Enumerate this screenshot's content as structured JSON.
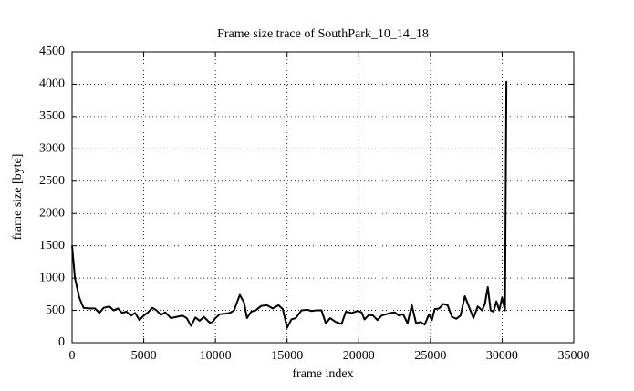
{
  "chart_data": {
    "type": "line",
    "title": "Frame size trace of SouthPark_10_14_18",
    "x_label": "frame index",
    "y_label": "frame size [byte]",
    "xlim": [
      0,
      35000
    ],
    "ylim": [
      0,
      4500
    ],
    "xticks": [
      0,
      5000,
      10000,
      15000,
      20000,
      25000,
      30000,
      35000
    ],
    "yticks": [
      0,
      500,
      1000,
      1500,
      2000,
      2500,
      3000,
      3500,
      4000,
      4500
    ],
    "grid": true,
    "series": [
      {
        "name": "frame size",
        "color": "#000000",
        "x": [
          0,
          200,
          500,
          800,
          1200,
          1600,
          1900,
          2200,
          2600,
          2900,
          3200,
          3500,
          3800,
          4100,
          4400,
          4700,
          5000,
          5300,
          5600,
          5900,
          6200,
          6500,
          6900,
          7300,
          7700,
          8000,
          8300,
          8600,
          8900,
          9200,
          9600,
          9800,
          10000,
          10300,
          10700,
          11000,
          11300,
          11700,
          12000,
          12200,
          12500,
          12800,
          13200,
          13600,
          14000,
          14400,
          14700,
          15000,
          15300,
          15600,
          16000,
          16400,
          16700,
          17000,
          17400,
          17700,
          18000,
          18400,
          18800,
          19100,
          19500,
          19900,
          20200,
          20400,
          20700,
          21000,
          21300,
          21600,
          21900,
          22200,
          22500,
          22800,
          23100,
          23400,
          23700,
          24000,
          24300,
          24600,
          24900,
          25100,
          25300,
          25600,
          25900,
          26200,
          26500,
          26800,
          27100,
          27400,
          27700,
          28000,
          28300,
          28600,
          28800,
          29000,
          29200,
          29400,
          29600,
          29800,
          30000,
          30200,
          30300
        ],
        "values": [
          1500,
          1000,
          700,
          540,
          530,
          530,
          460,
          540,
          560,
          500,
          530,
          460,
          480,
          420,
          460,
          350,
          420,
          470,
          540,
          500,
          430,
          470,
          380,
          400,
          420,
          380,
          260,
          390,
          340,
          400,
          310,
          320,
          380,
          440,
          450,
          460,
          500,
          740,
          620,
          380,
          480,
          500,
          570,
          580,
          530,
          580,
          520,
          230,
          360,
          380,
          500,
          510,
          490,
          500,
          500,
          300,
          380,
          320,
          290,
          480,
          460,
          490,
          470,
          360,
          430,
          420,
          350,
          420,
          440,
          460,
          470,
          420,
          440,
          300,
          580,
          300,
          320,
          280,
          440,
          350,
          520,
          530,
          600,
          580,
          400,
          370,
          420,
          720,
          550,
          380,
          560,
          500,
          600,
          860,
          500,
          480,
          640,
          500,
          700,
          500,
          4050
        ]
      }
    ]
  }
}
